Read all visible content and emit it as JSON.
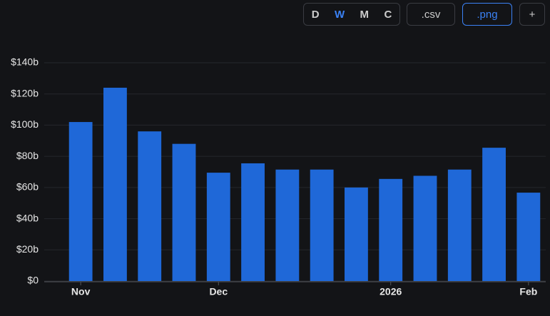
{
  "toolbar": {
    "periods": [
      "D",
      "W",
      "M",
      "C"
    ],
    "active_period": 1,
    "exports": [
      ".csv",
      ".png"
    ],
    "active_export": 1,
    "add": "+"
  },
  "chart_data": {
    "type": "bar",
    "categories": [
      "Nov",
      null,
      null,
      null,
      "Dec",
      null,
      null,
      null,
      null,
      "2026",
      null,
      null,
      null,
      "Feb"
    ],
    "values": [
      102,
      124,
      96,
      88,
      69.5,
      75.5,
      71.5,
      71.5,
      60,
      65.5,
      67.5,
      71.5,
      85.5,
      56.7
    ],
    "color": "#1f68d8",
    "ylim": [
      0,
      140
    ],
    "yticks": [
      {
        "value": 0,
        "label": "$0"
      },
      {
        "value": 20,
        "label": "$20b"
      },
      {
        "value": 40,
        "label": "$40b"
      },
      {
        "value": 60,
        "label": "$60b"
      },
      {
        "value": 80,
        "label": "$80b"
      },
      {
        "value": 100,
        "label": "$100b"
      },
      {
        "value": 120,
        "label": "$120b"
      },
      {
        "value": 140,
        "label": "$140b"
      }
    ],
    "grid": true
  }
}
